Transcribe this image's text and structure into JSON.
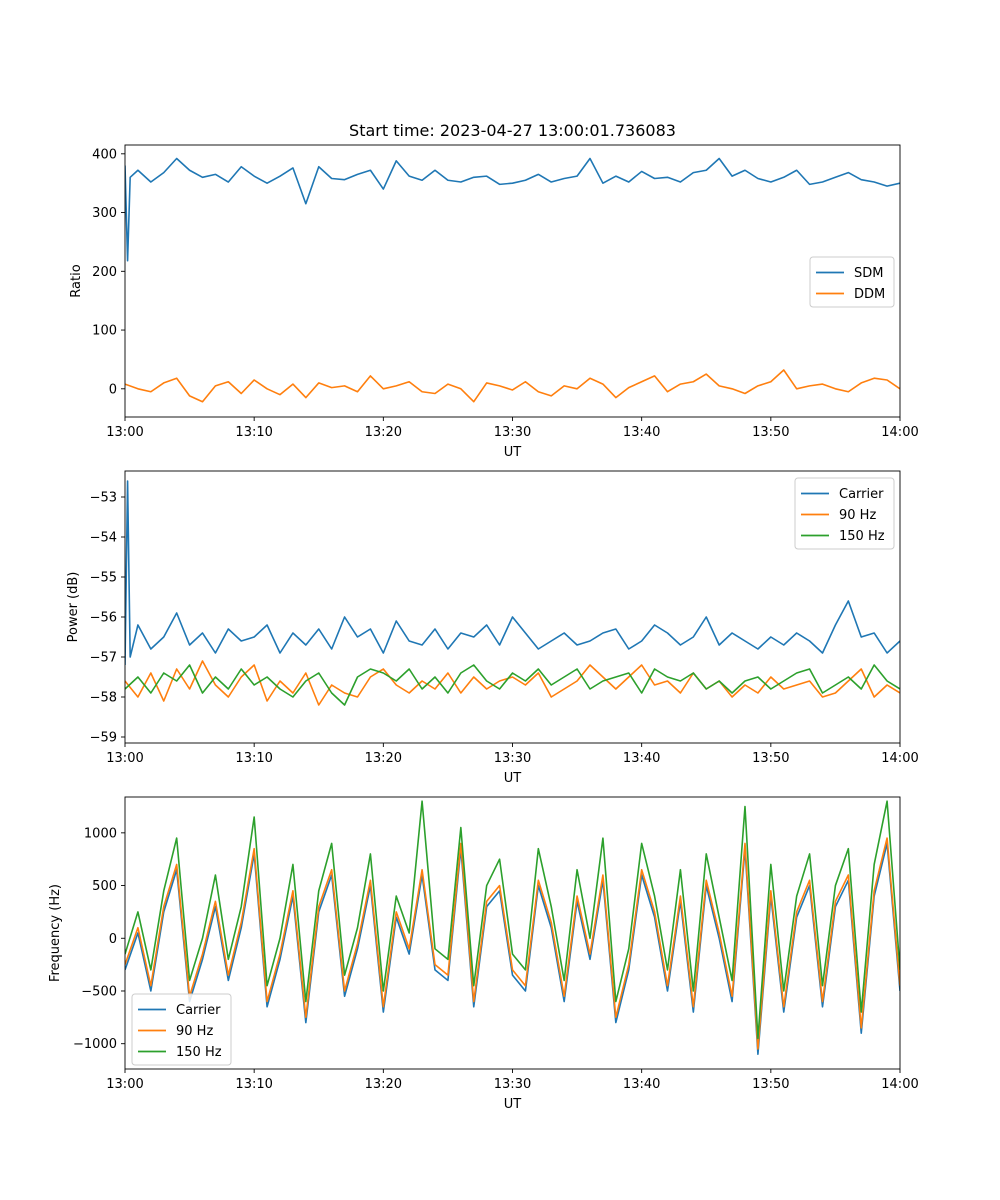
{
  "figure_title": "Start time: 2023-04-27 13:00:01.736083",
  "colors": {
    "blue": "#1f77b4",
    "orange": "#ff7f0e",
    "green": "#2ca02c"
  },
  "chart_data": [
    {
      "type": "line",
      "title": "Start time: 2023-04-27 13:00:01.736083",
      "xlabel": "UT",
      "ylabel": "Ratio",
      "xlim": [
        "13:00",
        "14:00"
      ],
      "ylim": [
        -48,
        415
      ],
      "xticks": [
        "13:00",
        "13:10",
        "13:20",
        "13:30",
        "13:40",
        "13:50",
        "14:00"
      ],
      "yticks": [
        0,
        100,
        200,
        300,
        400
      ],
      "grid": false,
      "legend": "center-right",
      "series": [
        {
          "name": "SDM",
          "color": "#1f77b4",
          "sampling": "one value per minute, first points at 13:00:00, 13:00:12, 13:00:24",
          "head": [
            380,
            218,
            360
          ],
          "values": [
            360,
            372,
            352,
            368,
            392,
            372,
            360,
            365,
            352,
            378,
            362,
            350,
            362,
            376,
            315,
            378,
            358,
            356,
            365,
            372,
            340,
            388,
            362,
            355,
            372,
            355,
            352,
            360,
            362,
            348,
            350,
            355,
            365,
            352,
            358,
            362,
            392,
            350,
            362,
            352,
            370,
            358,
            360,
            352,
            368,
            372,
            392,
            362,
            372,
            358,
            352,
            360,
            372,
            348,
            352,
            360,
            368,
            356,
            352,
            345,
            350
          ]
        },
        {
          "name": "DDM",
          "color": "#ff7f0e",
          "sampling": "one value per minute",
          "values": [
            8,
            0,
            -5,
            10,
            18,
            -12,
            -22,
            5,
            12,
            -8,
            15,
            0,
            -10,
            8,
            -15,
            10,
            2,
            5,
            -5,
            22,
            0,
            5,
            12,
            -5,
            -8,
            8,
            0,
            -22,
            10,
            5,
            -2,
            12,
            -5,
            -12,
            5,
            0,
            18,
            8,
            -15,
            2,
            12,
            22,
            -5,
            8,
            12,
            25,
            5,
            0,
            -8,
            5,
            12,
            32,
            0,
            5,
            8,
            0,
            -5,
            10,
            18,
            15,
            0
          ]
        }
      ]
    },
    {
      "type": "line",
      "title": "",
      "xlabel": "UT",
      "ylabel": "Power (dB)",
      "xlim": [
        "13:00",
        "14:00"
      ],
      "ylim": [
        -59.15,
        -52.35
      ],
      "xticks": [
        "13:00",
        "13:10",
        "13:20",
        "13:30",
        "13:40",
        "13:50",
        "14:00"
      ],
      "yticks": [
        -53,
        -54,
        -55,
        -56,
        -57,
        -58,
        -59
      ],
      "grid": false,
      "legend": "top-right",
      "series": [
        {
          "name": "Carrier",
          "color": "#1f77b4",
          "sampling": "one value per minute, first points at 13:00:00, 13:00:12, 13:00:24",
          "head": [
            -57.2,
            -52.6,
            -57.0
          ],
          "values": [
            -56.6,
            -56.2,
            -56.8,
            -56.5,
            -55.9,
            -56.7,
            -56.4,
            -56.9,
            -56.3,
            -56.6,
            -56.5,
            -56.2,
            -56.9,
            -56.4,
            -56.7,
            -56.3,
            -56.8,
            -56.0,
            -56.5,
            -56.3,
            -56.9,
            -56.1,
            -56.6,
            -56.7,
            -56.3,
            -56.8,
            -56.4,
            -56.5,
            -56.2,
            -56.7,
            -56.0,
            -56.4,
            -56.8,
            -56.6,
            -56.4,
            -56.7,
            -56.6,
            -56.4,
            -56.3,
            -56.8,
            -56.6,
            -56.2,
            -56.4,
            -56.7,
            -56.5,
            -56.0,
            -56.7,
            -56.4,
            -56.6,
            -56.8,
            -56.5,
            -56.7,
            -56.4,
            -56.6,
            -56.9,
            -56.2,
            -55.6,
            -56.5,
            -56.4,
            -56.9,
            -56.6
          ]
        },
        {
          "name": "90 Hz",
          "color": "#ff7f0e",
          "sampling": "one value per minute",
          "values": [
            -57.6,
            -58.0,
            -57.4,
            -58.1,
            -57.3,
            -57.8,
            -57.1,
            -57.7,
            -58.0,
            -57.5,
            -57.2,
            -58.1,
            -57.6,
            -57.9,
            -57.4,
            -58.2,
            -57.7,
            -57.9,
            -58.0,
            -57.5,
            -57.3,
            -57.7,
            -57.9,
            -57.6,
            -57.8,
            -57.4,
            -57.9,
            -57.5,
            -57.8,
            -57.6,
            -57.5,
            -57.7,
            -57.4,
            -58.0,
            -57.8,
            -57.6,
            -57.2,
            -57.5,
            -57.8,
            -57.5,
            -57.2,
            -57.7,
            -57.6,
            -57.9,
            -57.4,
            -57.8,
            -57.6,
            -58.0,
            -57.7,
            -57.9,
            -57.5,
            -57.8,
            -57.7,
            -57.6,
            -58.0,
            -57.9,
            -57.6,
            -57.3,
            -58.0,
            -57.7,
            -57.9
          ]
        },
        {
          "name": "150 Hz",
          "color": "#2ca02c",
          "sampling": "one value per minute",
          "values": [
            -57.8,
            -57.5,
            -57.9,
            -57.4,
            -57.6,
            -57.2,
            -57.9,
            -57.5,
            -57.8,
            -57.3,
            -57.7,
            -57.5,
            -57.8,
            -58.0,
            -57.6,
            -57.4,
            -57.9,
            -58.2,
            -57.5,
            -57.3,
            -57.4,
            -57.6,
            -57.3,
            -57.8,
            -57.5,
            -57.9,
            -57.4,
            -57.2,
            -57.6,
            -57.8,
            -57.4,
            -57.6,
            -57.3,
            -57.7,
            -57.5,
            -57.3,
            -57.8,
            -57.6,
            -57.5,
            -57.4,
            -57.9,
            -57.3,
            -57.5,
            -57.6,
            -57.4,
            -57.8,
            -57.6,
            -57.9,
            -57.6,
            -57.5,
            -57.8,
            -57.6,
            -57.4,
            -57.3,
            -57.9,
            -57.7,
            -57.5,
            -57.8,
            -57.2,
            -57.6,
            -57.8
          ]
        }
      ]
    },
    {
      "type": "line",
      "title": "",
      "xlabel": "UT",
      "ylabel": "Frequency (Hz)",
      "xlim": [
        "13:00",
        "14:00"
      ],
      "ylim": [
        -1240,
        1340
      ],
      "xticks": [
        "13:00",
        "13:10",
        "13:20",
        "13:30",
        "13:40",
        "13:50",
        "14:00"
      ],
      "yticks": [
        1000,
        500,
        0,
        -500,
        -1000
      ],
      "grid": false,
      "legend": "bottom-left",
      "series": [
        {
          "name": "Carrier",
          "color": "#1f77b4",
          "sampling": "one value per minute",
          "values": [
            -300,
            50,
            -500,
            250,
            650,
            -600,
            -200,
            300,
            -400,
            100,
            800,
            -650,
            -200,
            400,
            -800,
            250,
            600,
            -550,
            -100,
            500,
            -700,
            200,
            -150,
            600,
            -300,
            -400,
            850,
            -650,
            300,
            450,
            -350,
            -500,
            500,
            100,
            -600,
            350,
            -200,
            550,
            -800,
            -300,
            600,
            200,
            -500,
            350,
            -700,
            500,
            0,
            -600,
            850,
            -1100,
            400,
            -700,
            200,
            500,
            -650,
            300,
            550,
            -900,
            400,
            900,
            -500
          ]
        },
        {
          "name": "90 Hz",
          "color": "#ff7f0e",
          "sampling": "one value per minute",
          "values": [
            -250,
            100,
            -450,
            300,
            700,
            -550,
            -150,
            350,
            -350,
            150,
            850,
            -600,
            -150,
            450,
            -750,
            300,
            650,
            -500,
            -50,
            550,
            -650,
            250,
            -100,
            650,
            -250,
            -350,
            900,
            -600,
            350,
            500,
            -300,
            -450,
            550,
            150,
            -550,
            400,
            -150,
            600,
            -750,
            -250,
            650,
            250,
            -450,
            400,
            -650,
            550,
            50,
            -550,
            900,
            -1050,
            450,
            -650,
            250,
            550,
            -600,
            350,
            600,
            -850,
            450,
            950,
            -450
          ]
        },
        {
          "name": "150 Hz",
          "color": "#2ca02c",
          "sampling": "one value per minute",
          "values": [
            -150,
            250,
            -300,
            450,
            950,
            -400,
            0,
            600,
            -200,
            300,
            1150,
            -450,
            0,
            700,
            -600,
            450,
            900,
            -350,
            100,
            800,
            -500,
            400,
            50,
            1300,
            -100,
            -200,
            1050,
            -450,
            500,
            750,
            -150,
            -300,
            850,
            300,
            -400,
            650,
            0,
            950,
            -600,
            -100,
            900,
            400,
            -300,
            650,
            -500,
            800,
            200,
            -400,
            1250,
            -950,
            700,
            -500,
            400,
            800,
            -450,
            500,
            850,
            -700,
            700,
            1300,
            -300
          ]
        }
      ]
    }
  ]
}
